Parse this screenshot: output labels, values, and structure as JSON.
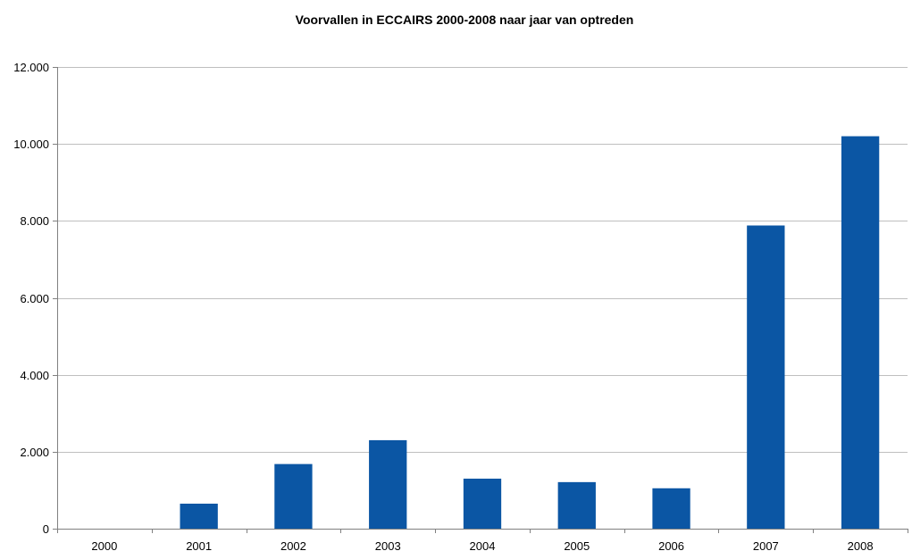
{
  "chart_data": {
    "type": "bar",
    "title": "Voorvallen in ECCAIRS 2000-2008 naar jaar van optreden",
    "xlabel": "",
    "ylabel": "",
    "categories": [
      "2000",
      "2001",
      "2002",
      "2003",
      "2004",
      "2005",
      "2006",
      "2007",
      "2008"
    ],
    "values": [
      0,
      650,
      1680,
      2300,
      1300,
      1210,
      1050,
      7880,
      10200
    ],
    "ylim": [
      0,
      12000
    ],
    "y_ticks": [
      0,
      2000,
      4000,
      6000,
      8000,
      10000,
      12000
    ],
    "y_tick_labels": [
      "0",
      "2.000",
      "4.000",
      "6.000",
      "8.000",
      "10.000",
      "12.000"
    ],
    "grid": true,
    "legend": "none",
    "colors": {
      "bar": "#0B56A4",
      "grid": "#BFBFBF",
      "axis": "#808080"
    }
  }
}
